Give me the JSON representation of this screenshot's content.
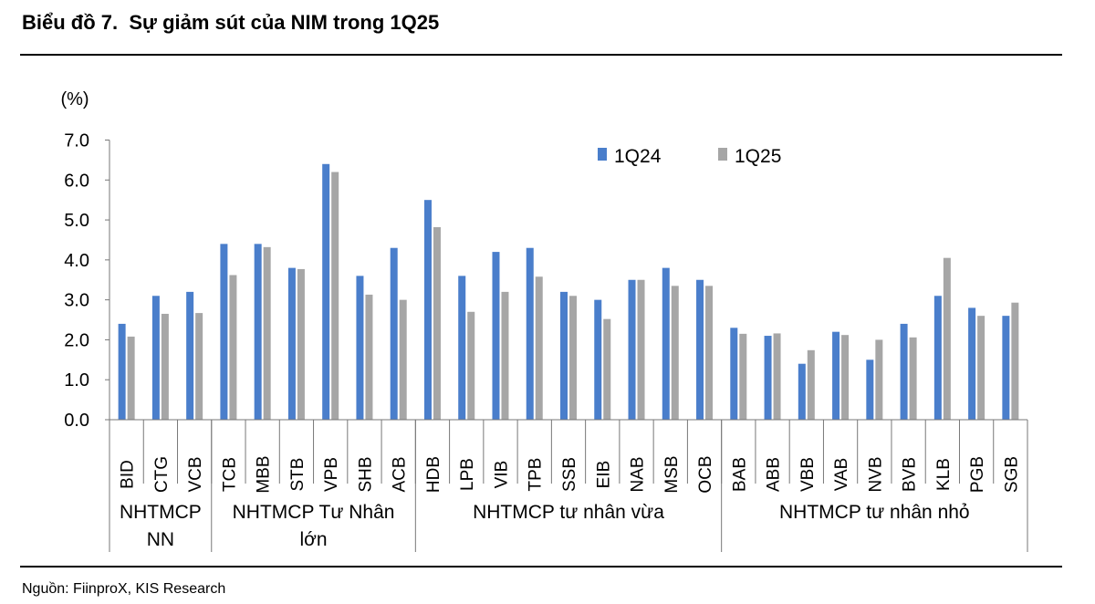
{
  "header": {
    "title": "Biểu đồ 7.  Sự giảm sút của NIM trong 1Q25"
  },
  "footer": {
    "source": "Nguồn: FiinproX, KIS Research"
  },
  "chart_data": {
    "type": "bar",
    "ylabel": "(%)",
    "ylim": [
      0,
      7
    ],
    "yticks": [
      "0.0",
      "1.0",
      "2.0",
      "3.0",
      "4.0",
      "5.0",
      "6.0",
      "7.0"
    ],
    "categories": [
      "BID",
      "CTG",
      "VCB",
      "TCB",
      "MBB",
      "STB",
      "VPB",
      "SHB",
      "ACB",
      "HDB",
      "LPB",
      "VIB",
      "TPB",
      "SSB",
      "EIB",
      "NAB",
      "MSB",
      "OCB",
      "BAB",
      "ABB",
      "VBB",
      "VAB",
      "NVB",
      "BVB",
      "KLB",
      "PGB",
      "SGB"
    ],
    "groups": [
      {
        "label_lines": [
          "NHTMCP",
          "NN"
        ],
        "count": 3
      },
      {
        "label_lines": [
          "NHTMCP Tư Nhân",
          "lớn"
        ],
        "count": 6
      },
      {
        "label_lines": [
          "NHTMCP tư nhân vừa"
        ],
        "count": 9
      },
      {
        "label_lines": [
          "NHTMCP tư nhân nhỏ"
        ],
        "count": 9
      }
    ],
    "series": [
      {
        "name": "1Q24",
        "color": "#4a7ecb",
        "values": [
          2.4,
          3.1,
          3.2,
          4.4,
          4.4,
          3.8,
          6.4,
          3.6,
          4.3,
          5.5,
          3.6,
          4.2,
          4.3,
          3.2,
          3.0,
          3.5,
          3.8,
          3.5,
          2.3,
          2.1,
          1.4,
          2.2,
          1.5,
          2.4,
          3.1,
          2.8,
          2.6
        ]
      },
      {
        "name": "1Q25",
        "color": "#a6a6a6",
        "values": [
          2.08,
          2.65,
          2.67,
          3.62,
          4.32,
          3.77,
          6.2,
          3.13,
          3.0,
          4.82,
          2.7,
          3.2,
          3.58,
          3.1,
          2.52,
          3.5,
          3.35,
          3.35,
          2.15,
          2.16,
          1.74,
          2.12,
          2.0,
          2.06,
          4.05,
          2.6,
          2.93
        ]
      }
    ],
    "legend_position": "top-right"
  }
}
